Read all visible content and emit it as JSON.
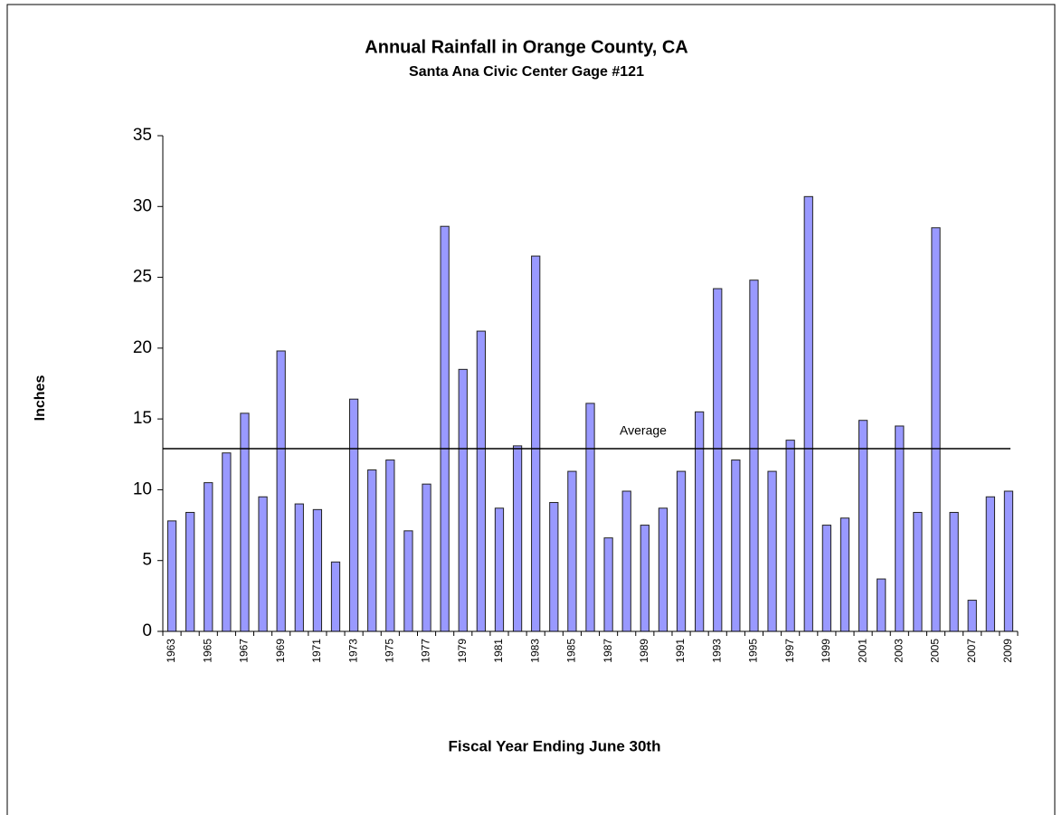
{
  "chart_data": {
    "type": "bar",
    "title": "Annual Rainfall in Orange County, CA",
    "subtitle": "Santa Ana Civic Center Gage #121",
    "y_label": "Inches",
    "x_label": "Fiscal Year Ending June 30th",
    "categories": [
      "1963",
      null,
      "1965",
      null,
      "1967",
      null,
      "1969",
      null,
      "1971",
      null,
      "1973",
      null,
      "1975",
      null,
      "1977",
      null,
      "1979",
      null,
      "1981",
      null,
      "1983",
      null,
      "1985",
      null,
      "1987",
      null,
      "1989",
      null,
      "1991",
      null,
      "1993",
      null,
      "1995",
      null,
      "1997",
      null,
      "1999",
      null,
      "2001",
      null,
      "2003",
      null,
      "2005",
      null,
      "2007",
      null,
      "2009"
    ],
    "values": [
      7.8,
      8.4,
      10.5,
      12.6,
      15.4,
      9.5,
      19.8,
      9.0,
      8.6,
      4.9,
      16.4,
      11.4,
      12.1,
      7.1,
      10.4,
      28.6,
      18.5,
      21.2,
      8.7,
      13.1,
      26.5,
      9.1,
      11.3,
      16.1,
      6.6,
      9.9,
      7.5,
      8.7,
      11.3,
      15.5,
      24.2,
      12.1,
      24.8,
      11.3,
      13.5,
      30.7,
      7.5,
      8.0,
      14.9,
      3.7,
      14.5,
      8.4,
      28.5,
      8.4,
      2.2,
      9.5,
      9.9
    ],
    "color": "#9999ff",
    "average": 12.9,
    "average_label": "Average",
    "ylim": [
      0,
      35
    ],
    "yticks": [
      0,
      5,
      10,
      15,
      20,
      25,
      30,
      35
    ],
    "grid": false
  }
}
